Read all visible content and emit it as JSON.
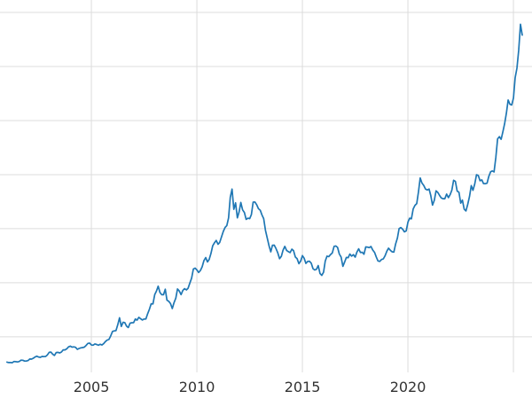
{
  "chart_data": {
    "type": "line",
    "title": "",
    "xlabel": "",
    "ylabel": "",
    "legend": "none",
    "grid": true,
    "x_start_year": 2001,
    "x_months_per_point": 1,
    "xlim": [
      2000.67,
      2025.88
    ],
    "ylim": [
      -75,
      3615
    ],
    "x_tick_labels": [
      "2005",
      "2010",
      "2015",
      "2020"
    ],
    "x_tick_years": [
      2005,
      2010,
      2015,
      2020
    ],
    "x_gridline_years": [
      2005,
      2010,
      2015,
      2020,
      2025
    ],
    "y_gridline_values": [
      500,
      1000,
      1500,
      2000,
      2500,
      3000,
      3500
    ],
    "line_color": "#1f77b4",
    "grid_color": "#dcdcdc",
    "background": "#ffffff",
    "tick_label_color": "#333333",
    "values": [
      266,
      262,
      263,
      260,
      272,
      270,
      268,
      272,
      284,
      283,
      276,
      276,
      281,
      295,
      294,
      302,
      314,
      321,
      313,
      310,
      319,
      317,
      319,
      333,
      357,
      359,
      340,
      328,
      355,
      356,
      351,
      360,
      379,
      379,
      389,
      407,
      414,
      405,
      407,
      403,
      384,
      392,
      398,
      401,
      405,
      420,
      439,
      442,
      424,
      423,
      434,
      429,
      422,
      431,
      424,
      437,
      456,
      470,
      476,
      510,
      550,
      555,
      557,
      611,
      676,
      596,
      634,
      632,
      599,
      586,
      627,
      630,
      631,
      665,
      655,
      680,
      667,
      656,
      665,
      665,
      713,
      755,
      806,
      804,
      890,
      922,
      968,
      910,
      889,
      889,
      940,
      839,
      829,
      807,
      761,
      816,
      858,
      943,
      924,
      890,
      929,
      946,
      934,
      949,
      997,
      1043,
      1127,
      1135,
      1118,
      1095,
      1113,
      1148,
      1205,
      1233,
      1193,
      1216,
      1271,
      1342,
      1370,
      1391,
      1356,
      1373,
      1424,
      1474,
      1511,
      1529,
      1600,
      1790,
      1866,
      1680,
      1739,
      1600,
      1656,
      1743,
      1674,
      1650,
      1586,
      1597,
      1593,
      1630,
      1745,
      1747,
      1722,
      1685,
      1671,
      1628,
      1593,
      1485,
      1414,
      1343,
      1286,
      1347,
      1348,
      1316,
      1276,
      1222,
      1244,
      1301,
      1336,
      1299,
      1288,
      1279,
      1311,
      1296,
      1238,
      1222,
      1176,
      1201,
      1251,
      1227,
      1179,
      1198,
      1199,
      1181,
      1130,
      1118,
      1125,
      1159,
      1086,
      1068,
      1097,
      1200,
      1246,
      1242,
      1261,
      1276,
      1337,
      1340,
      1327,
      1266,
      1238,
      1152,
      1192,
      1234,
      1231,
      1266,
      1246,
      1260,
      1237,
      1283,
      1314,
      1280,
      1282,
      1264,
      1331,
      1330,
      1325,
      1335,
      1303,
      1281,
      1238,
      1202,
      1198,
      1215,
      1221,
      1250,
      1292,
      1320,
      1301,
      1286,
      1284,
      1359,
      1413,
      1500,
      1511,
      1495,
      1471,
      1480,
      1561,
      1597,
      1592,
      1683,
      1716,
      1732,
      1843,
      1969,
      1922,
      1900,
      1866,
      1858,
      1867,
      1808,
      1718,
      1762,
      1850,
      1835,
      1807,
      1784,
      1777,
      1777,
      1820,
      1787,
      1816,
      1856,
      1948,
      1937,
      1848,
      1837,
      1736,
      1765,
      1681,
      1664,
      1725,
      1797,
      1898,
      1855,
      1913,
      1999,
      1992,
      1943,
      1951,
      1918,
      1916,
      1921,
      1984,
      2026,
      2034,
      2025,
      2158,
      2331,
      2351,
      2327,
      2398,
      2470,
      2568,
      2690,
      2651,
      2644,
      2708,
      2897,
      2984,
      3150,
      3390,
      3290
    ]
  }
}
